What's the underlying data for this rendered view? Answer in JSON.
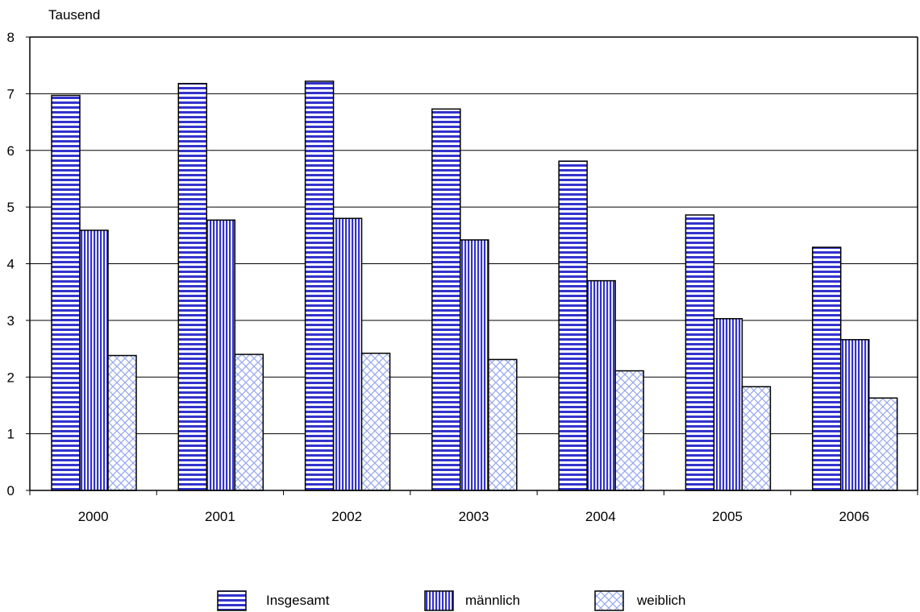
{
  "chart_data": {
    "type": "bar",
    "title": "",
    "xlabel": "",
    "ylabel": "Tausend",
    "categories": [
      "2000",
      "2001",
      "2002",
      "2003",
      "2004",
      "2005",
      "2006"
    ],
    "series": [
      {
        "name": "Insgesamt",
        "values": [
          6.97,
          7.18,
          7.22,
          6.73,
          5.81,
          4.86,
          4.29
        ],
        "pattern": "horizontal-lines"
      },
      {
        "name": "männlich",
        "values": [
          4.59,
          4.77,
          4.8,
          4.42,
          3.7,
          3.03,
          2.66
        ],
        "pattern": "vertical-lines"
      },
      {
        "name": "weiblich",
        "values": [
          2.38,
          2.4,
          2.42,
          2.31,
          2.11,
          1.83,
          1.63
        ],
        "pattern": "crosshatch"
      }
    ],
    "ylim": [
      0,
      8
    ],
    "yticks": [
      "0",
      "1",
      "2",
      "3",
      "4",
      "5",
      "6",
      "7",
      "8"
    ],
    "grid": true,
    "legend_position": "bottom",
    "colors": {
      "insgesamt_fill": "#3333cc",
      "maennlich_fill": "#3333cc",
      "weiblich_fill": "#99aaee",
      "gridline": "#000000",
      "background": "#ffffff"
    }
  }
}
